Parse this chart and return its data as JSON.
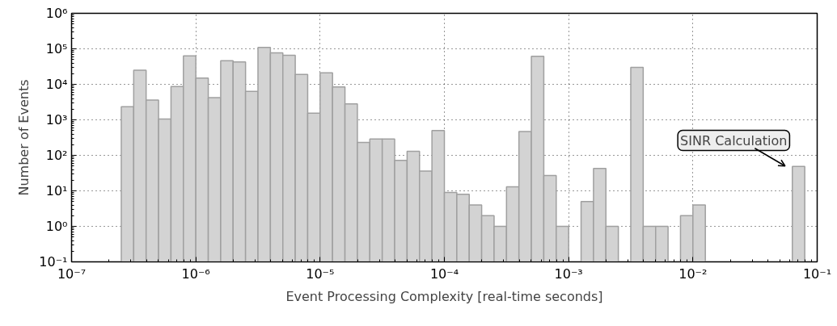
{
  "chart_data": {
    "type": "histogram",
    "xlabel": "Event Processing Complexity [real-time seconds]",
    "ylabel": "Number of Events",
    "bins": [
      2.512e-07,
      3.162e-07,
      3.981e-07,
      5.012e-07,
      6.31e-07,
      7.943e-07,
      1e-06,
      1.259e-06,
      1.585e-06,
      1.995e-06,
      2.512e-06,
      3.162e-06,
      3.981e-06,
      5.012e-06,
      6.31e-06,
      7.943e-06,
      1e-05,
      1.259e-05,
      1.585e-05,
      1.995e-05,
      2.512e-05,
      3.162e-05,
      3.981e-05,
      5.012e-05,
      6.31e-05,
      7.943e-05,
      0.0001,
      0.0001259,
      0.0001585,
      0.0001995,
      0.0002512,
      0.0003162,
      0.0003981,
      0.0005012,
      0.000631,
      0.0007943,
      0.001,
      0.001259,
      0.001585,
      0.001995,
      0.002512,
      0.003162,
      0.003981,
      0.005012,
      0.00631,
      0.007943,
      0.01,
      0.01259,
      0.01585,
      0.01995,
      0.02512,
      0.03162,
      0.03981,
      0.05012,
      0.0631,
      0.07943
    ],
    "values": [
      2350,
      25000,
      3600,
      1050,
      8700,
      63000,
      15000,
      4200,
      46000,
      43000,
      6300,
      110000,
      77000,
      66000,
      19000,
      1550,
      21000,
      8400,
      2800,
      230,
      290,
      290,
      72,
      130,
      36,
      500,
      9,
      8,
      4,
      2,
      1,
      13,
      470,
      62000,
      27,
      1,
      null,
      5,
      43,
      1,
      null,
      30000,
      1,
      1,
      null,
      2,
      4,
      null,
      null,
      null,
      null,
      null,
      null,
      null,
      49
    ],
    "color": "#d3d3d3",
    "log": "xy",
    "xlim": [
      1e-07,
      0.1
    ],
    "ylim": [
      0.1,
      1000000
    ],
    "xticks": [
      {
        "value": 1e-07,
        "label": "10⁻⁷"
      },
      {
        "value": 1e-06,
        "label": "10⁻⁶"
      },
      {
        "value": 1e-05,
        "label": "10⁻⁵"
      },
      {
        "value": 0.0001,
        "label": "10⁻⁴"
      },
      {
        "value": 0.001,
        "label": "10⁻³"
      },
      {
        "value": 0.01,
        "label": "10⁻²"
      },
      {
        "value": 0.1,
        "label": "10⁻¹"
      }
    ],
    "yticks": [
      {
        "value": 0.1,
        "label": "10⁻¹"
      },
      {
        "value": 1,
        "label": "10⁰"
      },
      {
        "value": 10,
        "label": "10¹"
      },
      {
        "value": 100,
        "label": "10²"
      },
      {
        "value": 1000,
        "label": "10³"
      },
      {
        "value": 10000,
        "label": "10⁴"
      },
      {
        "value": 100000,
        "label": "10⁵"
      },
      {
        "value": 1000000,
        "label": "10⁶"
      }
    ],
    "grid": true,
    "annotations": [
      {
        "text": "SINR Calculation",
        "x": 0.06,
        "y": 50
      }
    ]
  }
}
